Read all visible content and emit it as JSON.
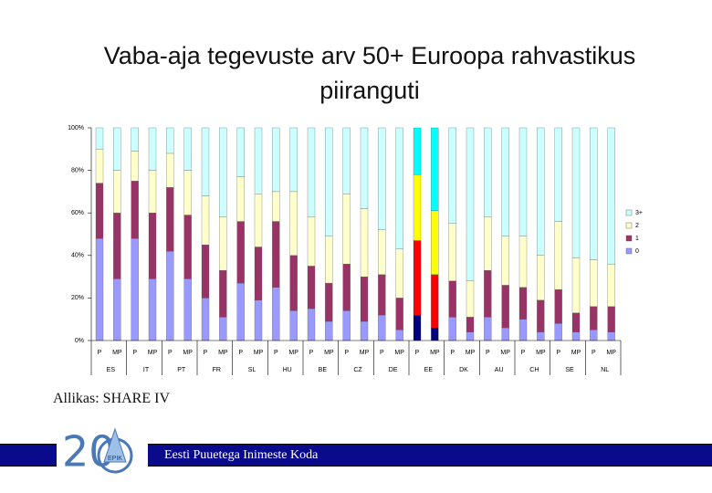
{
  "title": "Vaba-aja tegevuste arv 50+ Euroopa rahvastikus piiranguti",
  "source": "Allikas: SHARE IV",
  "footer": {
    "organization": "Eesti Puuetega Inimeste Koda",
    "logo_number": "20",
    "logo_text": "EPIK"
  },
  "chart_data": {
    "type": "stacked_bar",
    "categories": [
      "P",
      "MP",
      "P",
      "MP",
      "P",
      "MP",
      "P",
      "MP",
      "P",
      "MP",
      "P",
      "MP",
      "P",
      "MP",
      "P",
      "MP",
      "P",
      "MP",
      "P",
      "MP",
      "P",
      "MP",
      "P",
      "MP",
      "P",
      "MP",
      "P",
      "MP",
      "P",
      "MP"
    ],
    "groups": [
      "ES",
      "IT",
      "PT",
      "FR",
      "SL",
      "HU",
      "BE",
      "CZ",
      "DE",
      "EE",
      "DK",
      "AU",
      "CH",
      "SE",
      "NL"
    ],
    "highlight_group": "EE",
    "series": [
      {
        "name": "0",
        "color": "#9999ff",
        "highlight_color": "#000080",
        "values": [
          48,
          29,
          48,
          29,
          42,
          29,
          20,
          11,
          27,
          19,
          25,
          14,
          15,
          9,
          14,
          9,
          12,
          5,
          12,
          6,
          11,
          4,
          11,
          6,
          10,
          4,
          8,
          4,
          5,
          4
        ]
      },
      {
        "name": "1",
        "color": "#993366",
        "highlight_color": "#ff0000",
        "values": [
          26,
          31,
          27,
          31,
          30,
          30,
          25,
          22,
          29,
          25,
          31,
          26,
          20,
          18,
          22,
          21,
          19,
          15,
          35,
          25,
          17,
          7,
          22,
          20,
          15,
          15,
          16,
          9,
          11,
          12
        ]
      },
      {
        "name": "2",
        "color": "#ffffcc",
        "highlight_color": "#ffff00",
        "values": [
          16,
          20,
          14,
          20,
          16,
          21,
          23,
          25,
          21,
          25,
          14,
          30,
          23,
          22,
          33,
          32,
          21,
          23,
          31,
          30,
          27,
          17,
          25,
          23,
          24,
          21,
          32,
          26,
          22,
          20
        ]
      },
      {
        "name": "3+",
        "color": "#ccffff",
        "highlight_color": "#00ffff",
        "values": [
          10,
          20,
          11,
          20,
          12,
          20,
          32,
          42,
          23,
          31,
          30,
          30,
          42,
          51,
          31,
          38,
          48,
          57,
          22,
          39,
          45,
          72,
          42,
          51,
          51,
          60,
          44,
          61,
          62,
          64
        ]
      }
    ],
    "ylim": [
      0,
      100
    ],
    "yticks": [
      {
        "value": 0,
        "label": "0%"
      },
      {
        "value": 20,
        "label": "20%"
      },
      {
        "value": 40,
        "label": "40%"
      },
      {
        "value": 60,
        "label": "60%"
      },
      {
        "value": 80,
        "label": "80%"
      },
      {
        "value": 100,
        "label": "100%"
      }
    ],
    "legend": "right"
  }
}
